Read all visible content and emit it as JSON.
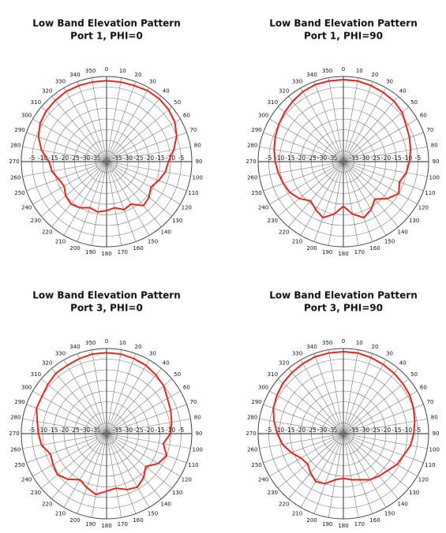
{
  "chart_data": [
    {
      "type": "polar",
      "title": "Low Band Elevation Pattern",
      "subtitle": "Port 1, PHI=0",
      "color": "#e8231e",
      "rlim": [
        -40,
        0
      ],
      "rticks": [
        -35,
        -30,
        -25,
        -20,
        -15,
        -10,
        -5
      ],
      "thetaticks": [
        0,
        10,
        20,
        30,
        40,
        50,
        60,
        70,
        80,
        90,
        100,
        110,
        120,
        130,
        140,
        150,
        160,
        170,
        180,
        190,
        200,
        210,
        220,
        230,
        240,
        250,
        260,
        270,
        280,
        290,
        300,
        310,
        320,
        330,
        340,
        350
      ],
      "theta": [
        0,
        10,
        20,
        30,
        40,
        50,
        60,
        70,
        80,
        90,
        100,
        110,
        120,
        130,
        140,
        150,
        160,
        170,
        180,
        190,
        200,
        210,
        220,
        230,
        240,
        250,
        260,
        270,
        280,
        290,
        300,
        310,
        320,
        330,
        340,
        350
      ],
      "values": [
        -2,
        -2,
        -2,
        -1.5,
        -1.5,
        -2,
        -3,
        -5,
        -8,
        -11,
        -12,
        -14,
        -16,
        -14,
        -13,
        -17,
        -16,
        -18,
        -17,
        -16,
        -17,
        -15,
        -14,
        -15,
        -17,
        -16,
        -14,
        -13,
        -9,
        -6,
        -4,
        -3,
        -2.5,
        -2,
        -2,
        -2
      ]
    },
    {
      "type": "polar",
      "title": "Low Band Elevation Pattern",
      "subtitle": "Port 1, PHI=90",
      "color": "#e8231e",
      "rlim": [
        -40,
        0
      ],
      "rticks": [
        -35,
        -30,
        -25,
        -20,
        -15,
        -10,
        -5
      ],
      "thetaticks": [
        0,
        10,
        20,
        30,
        40,
        50,
        60,
        70,
        80,
        90,
        100,
        110,
        120,
        130,
        140,
        150,
        160,
        170,
        180,
        190,
        200,
        210,
        220,
        230,
        240,
        250,
        260,
        270,
        280,
        290,
        300,
        310,
        320,
        330,
        340,
        350
      ],
      "theta": [
        0,
        10,
        20,
        30,
        40,
        50,
        60,
        70,
        80,
        90,
        100,
        110,
        120,
        130,
        140,
        150,
        160,
        170,
        180,
        190,
        200,
        210,
        220,
        230,
        240,
        250,
        260,
        270,
        280,
        290,
        300,
        310,
        320,
        330,
        340,
        350
      ],
      "values": [
        -1.5,
        -1.5,
        -2,
        -2.5,
        -3,
        -4,
        -6,
        -7,
        -8,
        -9,
        -10,
        -12,
        -10,
        -13,
        -17,
        -14,
        -12,
        -15,
        -19,
        -15,
        -12,
        -14,
        -16,
        -13,
        -11,
        -10,
        -9,
        -8,
        -7,
        -6,
        -5,
        -4,
        -3,
        -2,
        -1.5,
        -1.5
      ]
    },
    {
      "type": "polar",
      "title": "Low Band Elevation Pattern",
      "subtitle": "Port 3, PHI=0",
      "color": "#e8231e",
      "rlim": [
        -40,
        0
      ],
      "rticks": [
        -35,
        -30,
        -25,
        -20,
        -15,
        -10,
        -5
      ],
      "thetaticks": [
        0,
        10,
        20,
        30,
        40,
        50,
        60,
        70,
        80,
        90,
        100,
        110,
        120,
        130,
        140,
        150,
        160,
        170,
        180,
        190,
        200,
        210,
        220,
        230,
        240,
        250,
        260,
        270,
        280,
        290,
        300,
        310,
        320,
        330,
        340,
        350
      ],
      "theta": [
        0,
        10,
        20,
        30,
        40,
        50,
        60,
        70,
        80,
        90,
        100,
        110,
        120,
        130,
        140,
        150,
        160,
        170,
        180,
        190,
        200,
        210,
        220,
        230,
        240,
        250,
        260,
        270,
        280,
        290,
        300,
        310,
        320,
        330,
        340,
        350
      ],
      "values": [
        -2,
        -2,
        -2.5,
        -3,
        -4,
        -5,
        -7,
        -8,
        -9,
        -10,
        -13,
        -10,
        -12,
        -16,
        -13,
        -11,
        -12,
        -14,
        -13,
        -11,
        -13,
        -15,
        -12,
        -10,
        -11,
        -12,
        -9,
        -8,
        -7,
        -5,
        -5,
        -4,
        -3,
        -3,
        -2.5,
        -2
      ]
    },
    {
      "type": "polar",
      "title": "Low Band Elevation Pattern",
      "subtitle": "Port 3, PHI=90",
      "color": "#e8231e",
      "rlim": [
        -40,
        0
      ],
      "rticks": [
        -35,
        -30,
        -25,
        -20,
        -15,
        -10,
        -5
      ],
      "thetaticks": [
        0,
        10,
        20,
        30,
        40,
        50,
        60,
        70,
        80,
        90,
        100,
        110,
        120,
        130,
        140,
        150,
        160,
        170,
        180,
        190,
        200,
        210,
        220,
        230,
        240,
        250,
        260,
        270,
        280,
        290,
        300,
        310,
        320,
        330,
        340,
        350
      ],
      "theta": [
        0,
        10,
        20,
        30,
        40,
        50,
        60,
        70,
        80,
        90,
        100,
        110,
        120,
        130,
        140,
        150,
        160,
        170,
        180,
        190,
        200,
        210,
        220,
        230,
        240,
        250,
        260,
        270,
        280,
        290,
        300,
        310,
        320,
        330,
        340,
        350
      ],
      "values": [
        -1.5,
        -1.5,
        -2,
        -2.5,
        -3,
        -3.5,
        -4,
        -5,
        -6,
        -7,
        -8,
        -10,
        -11,
        -13,
        -14,
        -15,
        -17,
        -18,
        -19,
        -18,
        -15,
        -14,
        -16,
        -18,
        -17,
        -14,
        -11,
        -9,
        -7,
        -5,
        -4,
        -3,
        -2.5,
        -2,
        -1.5,
        -1.5
      ]
    }
  ]
}
